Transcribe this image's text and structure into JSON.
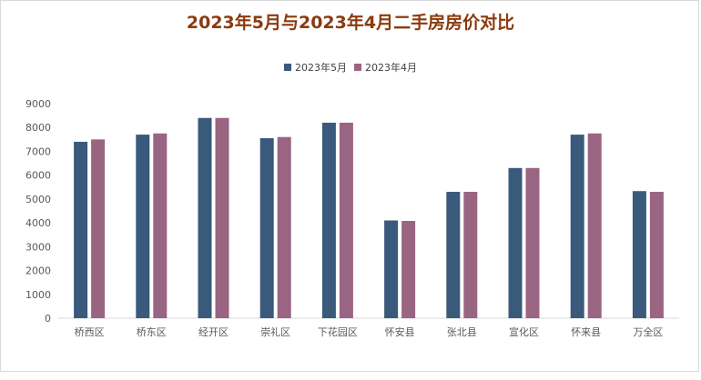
{
  "chart_data": {
    "type": "bar",
    "title": "2023年5月与2023年4月二手房房价对比",
    "categories": [
      "桥西区",
      "桥东区",
      "经开区",
      "崇礼区",
      "下花园区",
      "怀安县",
      "张北县",
      "宣化区",
      "怀来县",
      "万全区"
    ],
    "series": [
      {
        "name": "2023年5月",
        "color": "#3a5a7c",
        "values": [
          7400,
          7700,
          8400,
          7550,
          8200,
          4100,
          5300,
          6300,
          7700,
          5330
        ]
      },
      {
        "name": "2023年4月",
        "color": "#9a6483",
        "values": [
          7500,
          7750,
          8400,
          7600,
          8200,
          4080,
          5300,
          6300,
          7750,
          5300
        ]
      }
    ],
    "yticks": [
      0,
      1000,
      2000,
      3000,
      4000,
      5000,
      6000,
      7000,
      8000,
      9000
    ],
    "ylim": [
      0,
      9000
    ],
    "legend_position": "top",
    "grid": false
  }
}
